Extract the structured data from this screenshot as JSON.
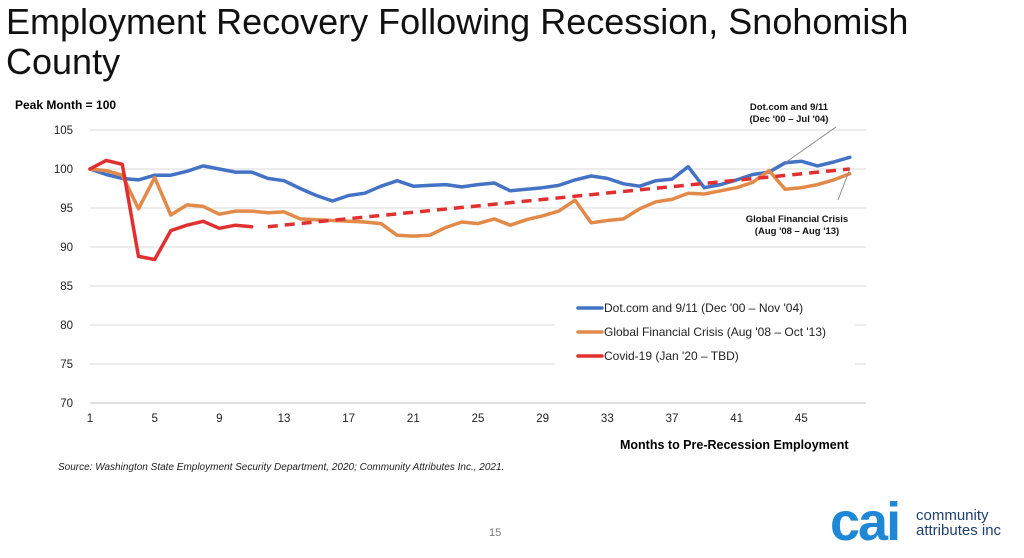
{
  "slide": {
    "title": "Employment Recovery Following Recession, Snohomish County",
    "source": "Source: Washington State Employment Security Department, 2020; Community Attributes Inc., 2021.",
    "page_number": "15",
    "logo": {
      "mark": "cai",
      "line1": "community",
      "line2": "attributes inc",
      "color": "#1e87d6"
    }
  },
  "chart_data": {
    "type": "line",
    "ylabel": "Peak Month = 100",
    "xlabel": "Months to Pre-Recession Employment",
    "ylim": [
      70,
      105
    ],
    "yticks": [
      70,
      75,
      80,
      85,
      90,
      95,
      100,
      105
    ],
    "xlim": [
      1,
      49
    ],
    "xticks": [
      1,
      5,
      9,
      13,
      17,
      21,
      25,
      29,
      33,
      37,
      41,
      45
    ],
    "grid": "horizontal",
    "legend_position": "lower-right",
    "series": [
      {
        "name": "Dot.com and 9/11 (Dec '00 – Nov '04)",
        "color": "#4472c4",
        "style": "solid",
        "x": [
          1,
          2,
          3,
          4,
          5,
          6,
          7,
          8,
          9,
          10,
          11,
          12,
          13,
          14,
          15,
          16,
          17,
          18,
          19,
          20,
          21,
          22,
          23,
          24,
          25,
          26,
          27,
          28,
          29,
          30,
          31,
          32,
          33,
          34,
          35,
          36,
          37,
          38,
          39,
          40,
          41,
          42,
          43,
          44,
          45,
          46,
          47,
          48
        ],
        "values": [
          100,
          99.3,
          98.8,
          98.6,
          99.2,
          99.2,
          99.7,
          100.4,
          100,
          99.6,
          99.6,
          98.8,
          98.5,
          97.5,
          96.6,
          95.9,
          96.6,
          96.9,
          97.8,
          98.5,
          97.8,
          97.9,
          98,
          97.7,
          98,
          98.2,
          97.2,
          97.4,
          97.6,
          97.9,
          98.6,
          99.1,
          98.8,
          98.1,
          97.8,
          98.5,
          98.7,
          100.3,
          97.6,
          98,
          98.6,
          99.3,
          99.6,
          100.8,
          101,
          100.4,
          100.9,
          101.5
        ]
      },
      {
        "name": "Global Financial Crisis (Aug '08 – Oct '13)",
        "color": "#e28a4a",
        "style": "solid",
        "x": [
          1,
          2,
          3,
          4,
          5,
          6,
          7,
          8,
          9,
          10,
          11,
          12,
          13,
          14,
          15,
          16,
          17,
          18,
          19,
          20,
          21,
          22,
          23,
          24,
          25,
          26,
          27,
          28,
          29,
          30,
          31,
          32,
          33,
          34,
          35,
          36,
          37,
          38,
          39,
          40,
          41,
          42,
          43,
          44,
          45,
          46,
          47,
          48
        ],
        "values": [
          100,
          99.8,
          99.2,
          94.9,
          98.9,
          94.1,
          95.4,
          95.2,
          94.2,
          94.6,
          94.6,
          94.4,
          94.5,
          93.6,
          93.5,
          93.4,
          93.3,
          93.2,
          93,
          91.5,
          91.4,
          91.5,
          92.5,
          93.2,
          93,
          93.6,
          92.8,
          93.5,
          94,
          94.6,
          96,
          93.1,
          93.4,
          93.6,
          94.9,
          95.8,
          96.1,
          96.9,
          96.8,
          97.2,
          97.6,
          98.3,
          99.8,
          97.4,
          97.6,
          98,
          98.6,
          99.4
        ]
      },
      {
        "name": "Covid-19 (Jan '20 – TBD)",
        "color": "#e03030",
        "style": "solid",
        "x": [
          1,
          2,
          3,
          4,
          5,
          6,
          7,
          8,
          9,
          10,
          11
        ],
        "values": [
          100,
          101.1,
          100.6,
          88.8,
          88.4,
          92.1,
          92.8,
          93.3,
          92.4,
          92.8,
          92.6
        ]
      },
      {
        "name": "",
        "color": "#e03030",
        "style": "dashed",
        "x": [
          12,
          48
        ],
        "values": [
          92.6,
          100
        ]
      }
    ],
    "annotations": [
      {
        "text_line1": "Dot.com and 9/11",
        "text_line2": "(Dec '00 – Jul '04)",
        "target_x": 44,
        "target_y": 100.8
      },
      {
        "text_line1": "Global Financial Crisis",
        "text_line2": "(Aug '08 – Aug '13)",
        "target_x": 48,
        "target_y": 100
      }
    ]
  }
}
